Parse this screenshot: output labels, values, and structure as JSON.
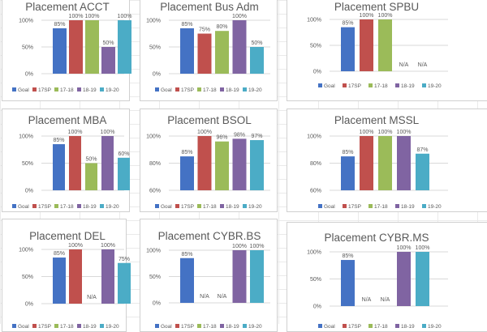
{
  "legend": {
    "series": [
      "Goal",
      "17SP",
      "17-18",
      "18-19",
      "19-20"
    ],
    "colors": [
      "#4472c4",
      "#c0504d",
      "#9bbb59",
      "#8064a2",
      "#4bacc6"
    ]
  },
  "chart_data": [
    {
      "type": "bar",
      "title": "Placement ACCT",
      "categories": [
        "Goal",
        "17SP",
        "17-18",
        "18-19",
        "19-20"
      ],
      "values": [
        85,
        100,
        100,
        50,
        100
      ],
      "labels": [
        "85%",
        "100%",
        "100%",
        "50%",
        "100%"
      ],
      "ylim": [
        0,
        100
      ],
      "yticks": [
        "0%",
        "50%",
        "100%"
      ],
      "ytick_values": [
        0,
        50,
        100
      ],
      "legend": "bottom",
      "grid": true
    },
    {
      "type": "bar",
      "title": "Placement Bus Adm",
      "categories": [
        "Goal",
        "17SP",
        "17-18",
        "18-19",
        "19-20"
      ],
      "values": [
        85,
        75,
        80,
        100,
        50
      ],
      "labels": [
        "85%",
        "75%",
        "80%",
        "100%",
        "50%"
      ],
      "ylim": [
        0,
        100
      ],
      "yticks": [
        "0%",
        "50%",
        "100%"
      ],
      "ytick_values": [
        0,
        50,
        100
      ],
      "legend": "bottom",
      "grid": true
    },
    {
      "type": "bar",
      "title": "Placement SPBU",
      "categories": [
        "Goal",
        "17SP",
        "17-18",
        "18-19",
        "19-20"
      ],
      "values": [
        85,
        100,
        100,
        null,
        null
      ],
      "labels": [
        "85%",
        "100%",
        "100%",
        "N/A",
        "N/A"
      ],
      "ylim": [
        0,
        100
      ],
      "yticks": [
        "0%",
        "50%",
        "100%"
      ],
      "ytick_values": [
        0,
        50,
        100
      ],
      "legend": "bottom",
      "grid": true
    },
    {
      "type": "bar",
      "title": "Placement MBA",
      "categories": [
        "Goal",
        "17SP",
        "17-18",
        "18-19",
        "19-20"
      ],
      "values": [
        85,
        100,
        50,
        100,
        60
      ],
      "labels": [
        "85%",
        "100%",
        "50%",
        "100%",
        "60%"
      ],
      "ylim": [
        0,
        100
      ],
      "yticks": [
        "0%",
        "50%",
        "100%"
      ],
      "ytick_values": [
        0,
        50,
        100
      ],
      "legend": "bottom",
      "grid": true
    },
    {
      "type": "bar",
      "title": "Placement BSOL",
      "categories": [
        "Goal",
        "17SP",
        "17-18",
        "18-19",
        "19-20"
      ],
      "values": [
        85,
        100,
        96,
        98,
        97
      ],
      "labels": [
        "85%",
        "100%",
        "96%",
        "98%",
        "97%"
      ],
      "ylim": [
        60,
        100
      ],
      "yticks": [
        "60%",
        "80%",
        "100%"
      ],
      "ytick_values": [
        60,
        80,
        100
      ],
      "legend": "bottom",
      "grid": true
    },
    {
      "type": "bar",
      "title": "Placement MSSL",
      "categories": [
        "Goal",
        "17SP",
        "17-18",
        "18-19",
        "19-20"
      ],
      "values": [
        85,
        100,
        100,
        100,
        87
      ],
      "labels": [
        "85%",
        "100%",
        "100%",
        "100%",
        "87%"
      ],
      "ylim": [
        60,
        100
      ],
      "yticks": [
        "60%",
        "80%",
        "100%"
      ],
      "ytick_values": [
        60,
        80,
        100
      ],
      "legend": "bottom",
      "grid": true
    },
    {
      "type": "bar",
      "title": "Placement DEL",
      "categories": [
        "Goal",
        "17SP",
        "17-18",
        "18-19",
        "19-20"
      ],
      "values": [
        85,
        100,
        null,
        100,
        75
      ],
      "labels": [
        "85%",
        "100%",
        "N/A",
        "100%",
        "75%"
      ],
      "ylim": [
        0,
        100
      ],
      "yticks": [
        "0%",
        "50%",
        "100%"
      ],
      "ytick_values": [
        0,
        50,
        100
      ],
      "legend": "bottom",
      "grid": true
    },
    {
      "type": "bar",
      "title": "Placement CYBR.BS",
      "categories": [
        "Goal",
        "17SP",
        "17-18",
        "18-19",
        "19-20"
      ],
      "values": [
        85,
        null,
        null,
        100,
        100
      ],
      "labels": [
        "85%",
        "N/A",
        "N/A",
        "100%",
        "100%"
      ],
      "ylim": [
        0,
        100
      ],
      "yticks": [
        "0%",
        "50%",
        "100%"
      ],
      "ytick_values": [
        0,
        50,
        100
      ],
      "legend": "bottom",
      "grid": true
    },
    {
      "type": "bar",
      "title": "Placement CYBR.MS",
      "categories": [
        "Goal",
        "17SP",
        "17-18",
        "18-19",
        "19-20"
      ],
      "values": [
        85,
        null,
        null,
        100,
        100
      ],
      "labels": [
        "85%",
        "N/A",
        "N/A",
        "100%",
        "100%"
      ],
      "ylim": [
        0,
        100
      ],
      "yticks": [
        "0%",
        "50%",
        "100%"
      ],
      "ytick_values": [
        0,
        50,
        100
      ],
      "legend": "bottom",
      "grid": true
    }
  ]
}
